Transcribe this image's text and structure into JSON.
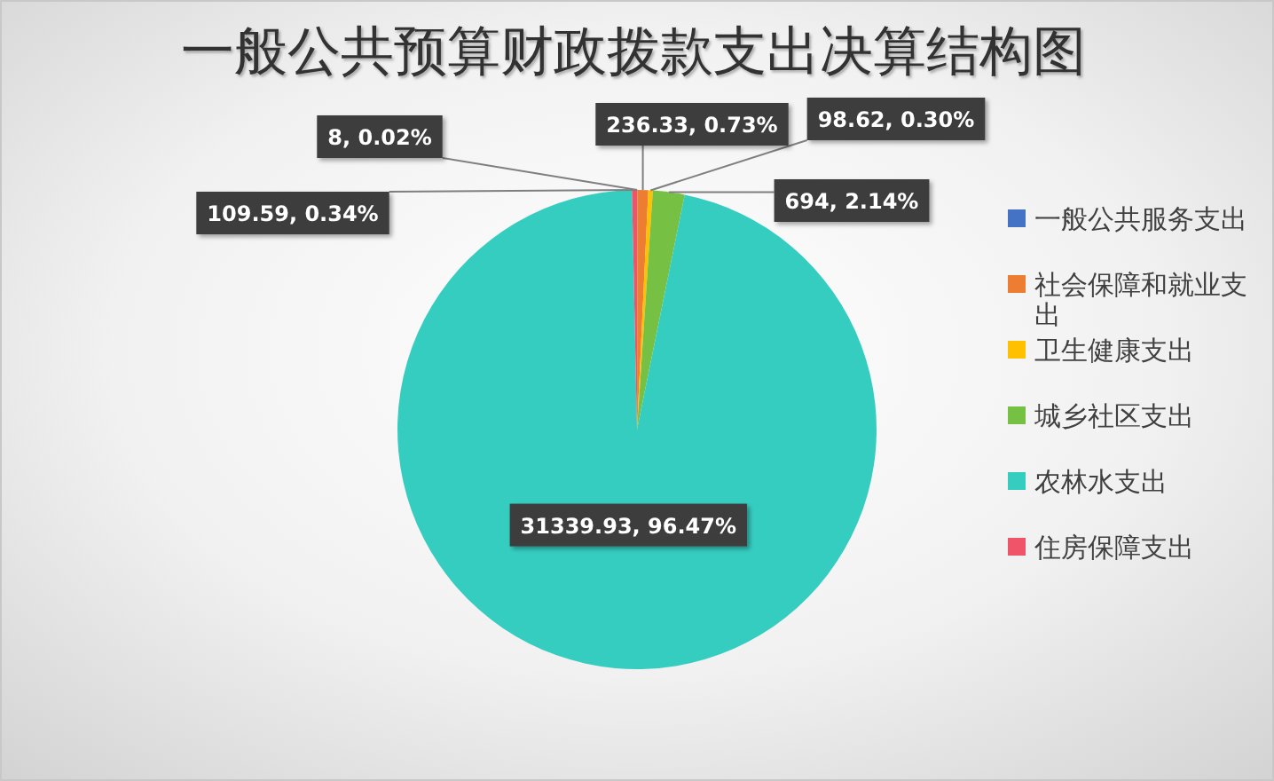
{
  "chart_data": {
    "type": "pie",
    "title": "一般公共预算财政拨款支出决算结构图",
    "categories": [
      "一般公共服务支出",
      "社会保障和就业支出",
      "卫生健康支出",
      "城乡社区支出",
      "农林水支出",
      "住房保障支出"
    ],
    "values": [
      8,
      236.33,
      98.62,
      694,
      31339.93,
      109.59
    ],
    "colors": [
      "#4472c4",
      "#ed7d31",
      "#ffc000",
      "#76c043",
      "#36cdc1",
      "#f05469"
    ],
    "value_labels": [
      "8, 0.02%",
      "236.33, 0.73%",
      "98.62, 0.30%",
      "694, 2.14%",
      "31339.93, 96.47%",
      "109.59, 0.34%"
    ],
    "legend": "right"
  }
}
